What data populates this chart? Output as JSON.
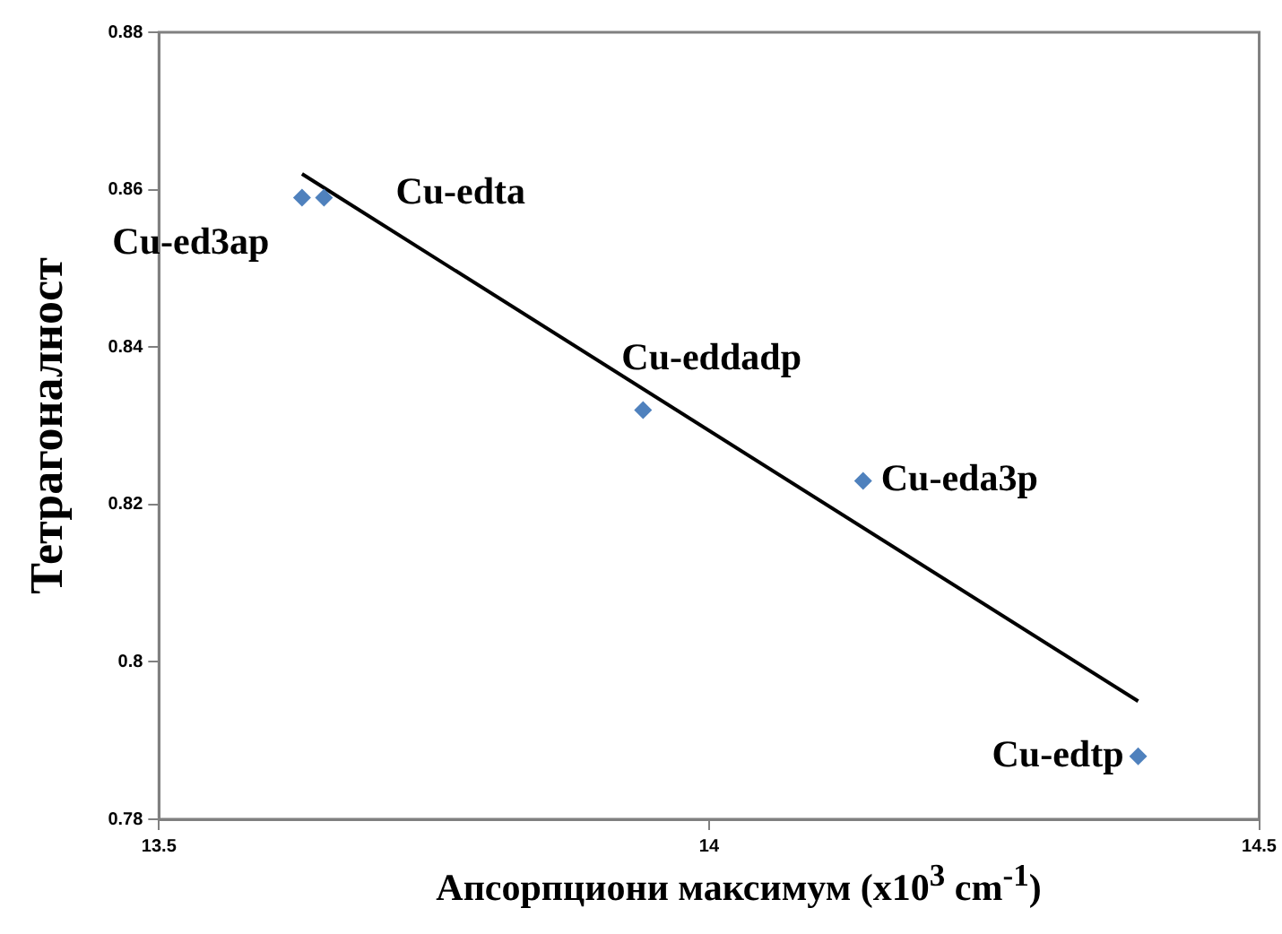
{
  "chart_data": {
    "type": "scatter",
    "xlabel": "Апсорпциони максимум (x10$^{3}$ cm$^{-1}$)",
    "ylabel": "Тетрагоналност",
    "xlim": [
      13.5,
      14.5
    ],
    "xticks": [
      13.5,
      14,
      14.5
    ],
    "ylim": [
      0.78,
      0.88
    ],
    "yticks": [
      0.78,
      0.8,
      0.82,
      0.84,
      0.86,
      0.88
    ],
    "grid": false,
    "legend": false,
    "marker": "diamond",
    "series": [
      {
        "color": "#4f81bd",
        "x": [
          13.63,
          13.65,
          13.94,
          14.14,
          14.39
        ],
        "values": [
          0.859,
          0.859,
          0.832,
          0.823,
          0.788
        ]
      },
      {
        "type": "line",
        "color": "#000000",
        "marker": "none",
        "x": [
          13.63,
          14.39
        ],
        "values": [
          0.862,
          0.795
        ]
      }
    ],
    "annotations": [
      {
        "text": "Cu-ed3ap",
        "x": 13.63,
        "y": 0.859
      },
      {
        "text": "Cu-edta",
        "x": 13.65,
        "y": 0.859
      },
      {
        "text": "Cu-eddadp",
        "x": 13.94,
        "y": 0.832
      },
      {
        "text": "Cu-eda3p",
        "x": 14.14,
        "y": 0.823
      },
      {
        "text": "Cu-edtp",
        "x": 14.39,
        "y": 0.788
      }
    ]
  }
}
